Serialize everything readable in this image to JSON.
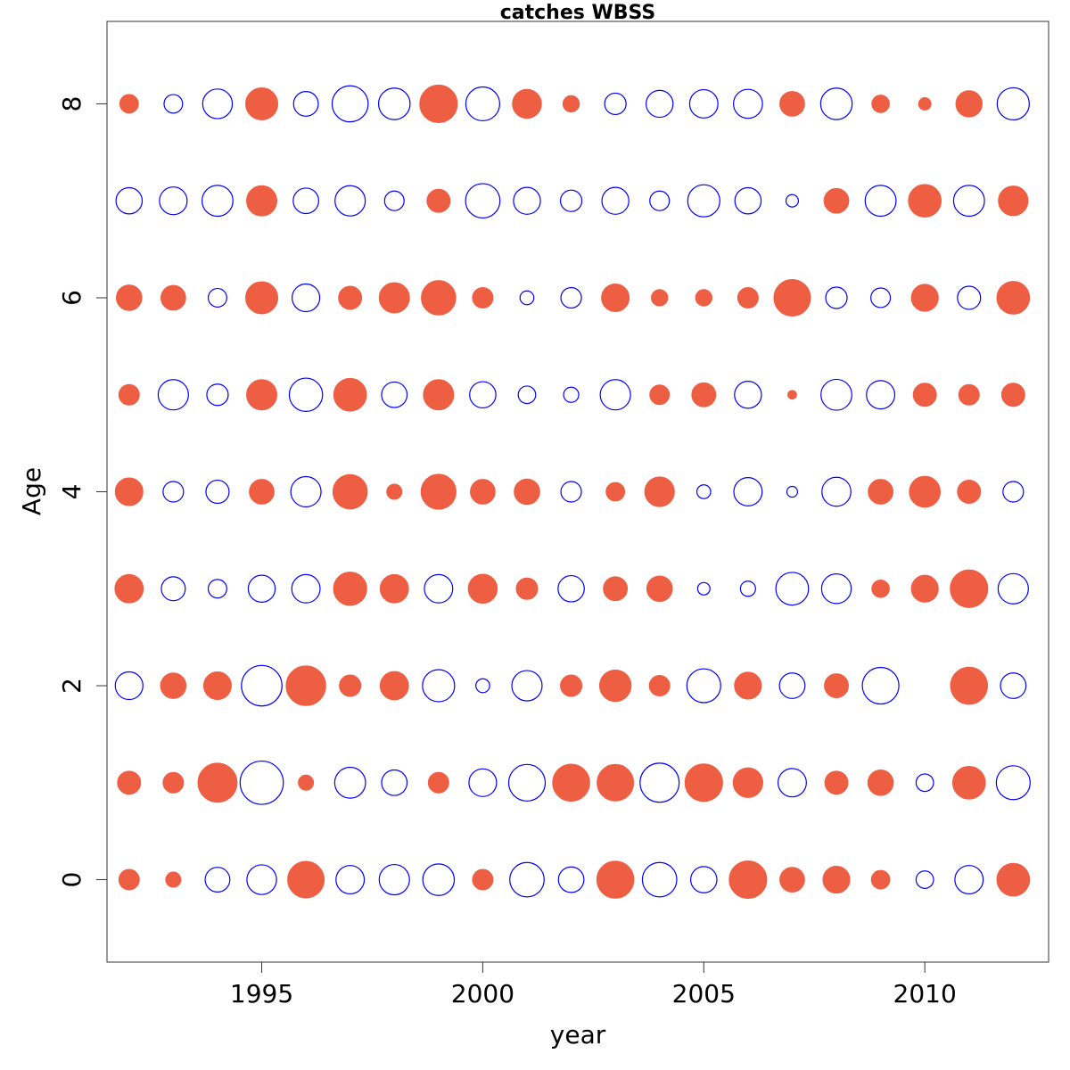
{
  "chart_data": {
    "type": "scatter",
    "subtype": "bubble",
    "title": "catches WBSS",
    "xlabel": "year",
    "ylabel": "Age",
    "xlim": [
      1991.5,
      2012.8
    ],
    "ylim": [
      -0.85,
      8.85
    ],
    "x_ticks": [
      1995,
      2000,
      2005,
      2010
    ],
    "y_ticks": [
      0,
      2,
      4,
      6,
      8
    ],
    "grid": false,
    "legend": "none",
    "colors": {
      "positive": "#EE5E43",
      "negative": "#0000FF"
    },
    "years": [
      1992,
      1993,
      1994,
      1995,
      1996,
      1997,
      1998,
      1999,
      2000,
      2001,
      2002,
      2003,
      2004,
      2005,
      2006,
      2007,
      2008,
      2009,
      2010,
      2011,
      2012
    ],
    "ages": [
      0,
      1,
      2,
      3,
      4,
      5,
      6,
      7,
      8
    ],
    "residuals": [
      [
        0.55,
        0.3,
        -0.8,
        -1.15,
        1.75,
        -1.05,
        -1.2,
        -1.3,
        0.55,
        -1.55,
        -0.85,
        1.8,
        -1.55,
        -0.9,
        1.85,
        0.8,
        0.95,
        0.45,
        -0.4,
        -1.05,
        1.4
      ],
      [
        0.7,
        0.55,
        2.0,
        -2.45,
        0.3,
        -1.25,
        -0.85,
        0.55,
        -1.0,
        -1.75,
        1.8,
        1.75,
        -2.0,
        1.85,
        1.15,
        -1.05,
        0.7,
        0.85,
        -0.4,
        1.4,
        -1.5
      ],
      [
        -1.0,
        0.85,
        1.0,
        -2.15,
        2.05,
        0.6,
        1.05,
        -1.35,
        -0.25,
        -1.2,
        0.6,
        1.3,
        0.55,
        -1.5,
        0.95,
        -0.85,
        0.75,
        -1.75,
        0.0,
        1.8,
        -0.85
      ],
      [
        1.05,
        -0.75,
        -0.45,
        -0.95,
        -1.05,
        1.45,
        1.05,
        -1.05,
        1.1,
        0.6,
        -0.9,
        0.75,
        0.85,
        -0.2,
        -0.3,
        -1.4,
        -1.15,
        0.4,
        0.95,
        1.85,
        -1.2
      ],
      [
        1.0,
        -0.55,
        -0.7,
        0.8,
        -1.2,
        1.55,
        0.3,
        1.6,
        0.8,
        0.85,
        -0.55,
        0.45,
        1.15,
        -0.25,
        -1.05,
        -0.15,
        -1.1,
        0.8,
        1.25,
        0.7,
        -0.55
      ],
      [
        0.55,
        -1.2,
        -0.6,
        1.2,
        -1.45,
        1.4,
        -0.85,
        1.2,
        -0.9,
        -0.4,
        -0.3,
        -1.2,
        0.5,
        0.75,
        -0.95,
        0.1,
        -1.25,
        -1.05,
        0.7,
        0.55,
        0.7
      ],
      [
        0.85,
        0.8,
        -0.45,
        1.35,
        -1.0,
        0.7,
        1.2,
        1.55,
        0.55,
        -0.25,
        -0.55,
        1.0,
        0.35,
        0.35,
        0.55,
        1.75,
        -0.6,
        -0.5,
        0.95,
        -0.7,
        1.4
      ],
      [
        -0.9,
        -1.0,
        -1.25,
        1.2,
        -0.85,
        -1.2,
        -0.5,
        0.7,
        -1.55,
        -0.95,
        -0.6,
        -0.95,
        -0.5,
        -1.35,
        -0.9,
        -0.2,
        0.8,
        -1.25,
        1.4,
        -1.25,
        1.15
      ],
      [
        0.45,
        -0.45,
        -1.15,
        1.35,
        -0.8,
        -1.7,
        -1.3,
        1.85,
        -1.5,
        1.1,
        0.35,
        -0.6,
        -0.95,
        -1.05,
        -1.1,
        0.8,
        -1.3,
        0.4,
        0.2,
        0.9,
        -1.35
      ]
    ]
  }
}
